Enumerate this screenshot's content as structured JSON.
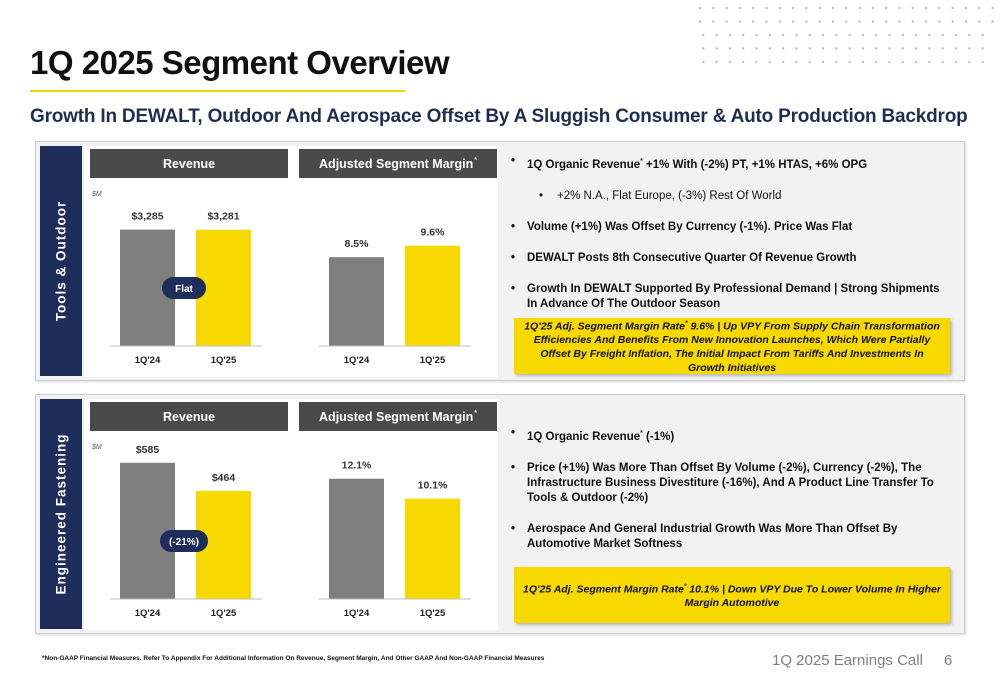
{
  "page": {
    "title": "1Q 2025 Segment Overview",
    "subtitle": "Growth In DEWALT, Outdoor And Aerospace Offset By A Sluggish Consumer & Auto Production Backdrop",
    "footnote": "*Non-GAAP Financial Measures. Refer To Appendix For Additional Information On Revenue, Segment Margin, And Other GAAP And Non-GAAP Financial Measures",
    "footer_label": "1Q 2025 Earnings Call",
    "page_number": "6"
  },
  "colors": {
    "navy": "#1f2d5a",
    "gray_bar": "#7f7f7f",
    "yellow": "#f7d900",
    "header_gray": "#4a4a4a"
  },
  "segments": [
    {
      "name": "Tools & Outdoor",
      "revenue_header": "Revenue",
      "margin_header": "Adjusted Segment Margin",
      "unit": "$M",
      "growth_badge": "Flat",
      "bullets": [
        {
          "pre": "1Q Organic Revenue",
          "star": "*",
          "post": " +1% With (-2%) PT, +1% HTAS, +6% OPG",
          "sub": false
        },
        {
          "pre": "+2% N.A.,  Flat Europe, (-3%) Rest Of World",
          "star": "",
          "post": "",
          "sub": true
        },
        {
          "pre": "Volume (+1%) Was Offset By Currency (-1%).  Price Was Flat",
          "star": "",
          "post": "",
          "sub": false
        },
        {
          "pre": "DEWALT Posts 8th Consecutive Quarter Of Revenue Growth",
          "star": "",
          "post": "",
          "sub": false
        },
        {
          "pre": "Growth In DEWALT Supported By Professional Demand | Strong Shipments In Advance Of The Outdoor Season",
          "star": "",
          "post": "",
          "sub": false
        }
      ],
      "callout": {
        "pre": "1Q'25 Adj. Segment Margin Rate",
        "star": "*",
        "post": " 9.6% | Up VPY From Supply Chain Transformation Efficiencies And Benefits From New Innovation Launches, Which Were Partially Offset By Freight Inflation, The Initial Impact From Tariffs And Investments In Growth Initiatives"
      }
    },
    {
      "name": "Engineered Fastening",
      "revenue_header": "Revenue",
      "margin_header": "Adjusted Segment Margin",
      "unit": "$M",
      "growth_badge": "(-21%)",
      "bullets": [
        {
          "pre": "1Q Organic Revenue",
          "star": "*",
          "post": " (-1%)",
          "sub": false
        },
        {
          "pre": "Price (+1%) Was More Than Offset By Volume (-2%), Currency (-2%), The Infrastructure Business Divestiture (-16%), And A Product Line Transfer To Tools & Outdoor (-2%)",
          "star": "",
          "post": "",
          "sub": false
        },
        {
          "pre": "Aerospace And General Industrial Growth Was More Than Offset By Automotive Market Softness",
          "star": "",
          "post": "",
          "sub": false
        }
      ],
      "callout": {
        "pre": "1Q'25 Adj. Segment Margin Rate",
        "star": "*",
        "post": " 10.1% | Down VPY Due To Lower Volume In Higher Margin Automotive"
      }
    }
  ],
  "chart_data": [
    {
      "type": "bar",
      "segment": "Tools & Outdoor",
      "title": "Revenue",
      "ylabel": "$M",
      "categories": [
        "1Q'24",
        "1Q'25"
      ],
      "values": [
        3285,
        3281
      ],
      "labels": [
        "$3,285",
        "$3,281"
      ],
      "ylim": [
        0,
        4600
      ]
    },
    {
      "type": "bar",
      "segment": "Tools & Outdoor",
      "title": "Adjusted Segment Margin",
      "categories": [
        "1Q'24",
        "1Q'25"
      ],
      "values": [
        8.5,
        9.6
      ],
      "labels": [
        "8.5%",
        "9.6%"
      ],
      "ylim": [
        0,
        15.6
      ]
    },
    {
      "type": "bar",
      "segment": "Engineered Fastening",
      "title": "Revenue",
      "ylabel": "$M",
      "categories": [
        "1Q'24",
        "1Q'25"
      ],
      "values": [
        585,
        464
      ],
      "labels": [
        "$585",
        "$464"
      ],
      "ylim": [
        0,
        700
      ]
    },
    {
      "type": "bar",
      "segment": "Engineered Fastening",
      "title": "Adjusted Segment Margin",
      "categories": [
        "1Q'24",
        "1Q'25"
      ],
      "values": [
        12.1,
        10.1
      ],
      "labels": [
        "12.1%",
        "10.1%"
      ],
      "ylim": [
        0,
        16.4
      ]
    }
  ]
}
